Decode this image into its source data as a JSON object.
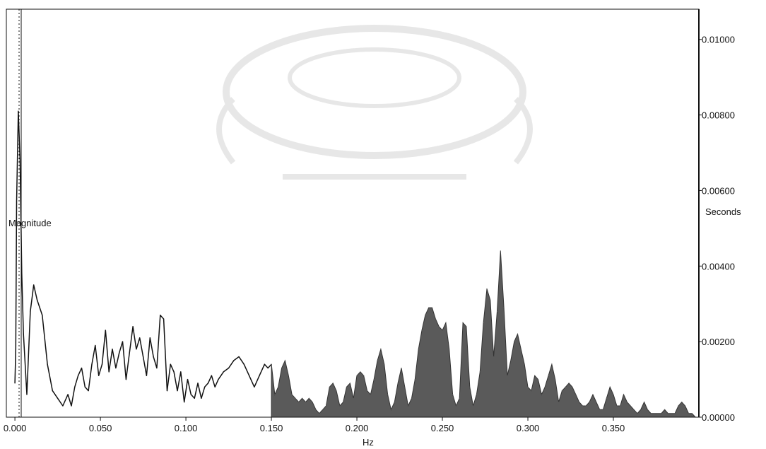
{
  "chart_data": {
    "type": "area",
    "xlabel": "Hz",
    "ylabel_left": "Magnitude",
    "ylabel_right": "Seconds",
    "xlim": [
      -0.005,
      0.4
    ],
    "ylim": [
      0,
      0.0108
    ],
    "x_ticks": [
      "0.000",
      "0.050",
      "0.100",
      "0.150",
      "0.200",
      "0.250",
      "0.300",
      "0.350"
    ],
    "x_tick_values": [
      0.0,
      0.05,
      0.1,
      0.15,
      0.2,
      0.25,
      0.3,
      0.35
    ],
    "y_ticks": [
      "0.00000",
      "0.00200",
      "0.00400",
      "0.00600",
      "0.00800",
      "0.01000"
    ],
    "y_tick_values": [
      0.0,
      0.002,
      0.004,
      0.006,
      0.008,
      0.01
    ],
    "low_band_limit": 0.15,
    "series": [
      {
        "style": "line",
        "color": "#111111",
        "x": [
          0.0,
          0.0005,
          0.001,
          0.002,
          0.003,
          0.004,
          0.005,
          0.007,
          0.009,
          0.011,
          0.013,
          0.016,
          0.019,
          0.022,
          0.025,
          0.028,
          0.031,
          0.033,
          0.035,
          0.037,
          0.039,
          0.041,
          0.043,
          0.045,
          0.047,
          0.049,
          0.051,
          0.053,
          0.055,
          0.057,
          0.059,
          0.061,
          0.063,
          0.065,
          0.067,
          0.069,
          0.071,
          0.073,
          0.075,
          0.077,
          0.079,
          0.081,
          0.083,
          0.085,
          0.087,
          0.089,
          0.091,
          0.093,
          0.095,
          0.097,
          0.099,
          0.101,
          0.103,
          0.105,
          0.107,
          0.109,
          0.111,
          0.113,
          0.115,
          0.117,
          0.119,
          0.122,
          0.125,
          0.128,
          0.131,
          0.134,
          0.137,
          0.14,
          0.143,
          0.146,
          0.148,
          0.15
        ],
        "values": [
          0.0009,
          0.0018,
          0.0057,
          0.0081,
          0.0068,
          0.0038,
          0.0022,
          0.0006,
          0.0028,
          0.0035,
          0.0031,
          0.0027,
          0.0014,
          0.0007,
          0.0005,
          0.0003,
          0.0006,
          0.0003,
          0.0008,
          0.0011,
          0.0013,
          0.0008,
          0.0007,
          0.0014,
          0.0019,
          0.0011,
          0.0014,
          0.0023,
          0.0012,
          0.0018,
          0.0013,
          0.0017,
          0.002,
          0.001,
          0.0017,
          0.0024,
          0.0018,
          0.0021,
          0.0016,
          0.0011,
          0.0021,
          0.0016,
          0.0013,
          0.0027,
          0.0026,
          0.0007,
          0.0014,
          0.0012,
          0.0007,
          0.0012,
          0.0004,
          0.001,
          0.0006,
          0.0005,
          0.0009,
          0.0005,
          0.0008,
          0.0009,
          0.0011,
          0.0008,
          0.001,
          0.0012,
          0.0013,
          0.0015,
          0.0016,
          0.0014,
          0.0011,
          0.0008,
          0.0011,
          0.0014,
          0.0013,
          0.0014
        ]
      },
      {
        "style": "area",
        "color": "#5a5a5a",
        "x": [
          0.15,
          0.152,
          0.154,
          0.156,
          0.158,
          0.16,
          0.162,
          0.164,
          0.166,
          0.168,
          0.17,
          0.172,
          0.174,
          0.176,
          0.178,
          0.18,
          0.182,
          0.184,
          0.186,
          0.188,
          0.19,
          0.192,
          0.194,
          0.196,
          0.198,
          0.2,
          0.202,
          0.204,
          0.206,
          0.208,
          0.21,
          0.212,
          0.214,
          0.216,
          0.218,
          0.22,
          0.222,
          0.224,
          0.226,
          0.228,
          0.23,
          0.232,
          0.234,
          0.236,
          0.238,
          0.24,
          0.242,
          0.244,
          0.246,
          0.248,
          0.25,
          0.252,
          0.254,
          0.256,
          0.258,
          0.26,
          0.262,
          0.264,
          0.266,
          0.268,
          0.27,
          0.272,
          0.274,
          0.276,
          0.278,
          0.28,
          0.282,
          0.284,
          0.286,
          0.288,
          0.29,
          0.292,
          0.294,
          0.296,
          0.298,
          0.3,
          0.302,
          0.304,
          0.306,
          0.308,
          0.31,
          0.312,
          0.314,
          0.316,
          0.318,
          0.32,
          0.322,
          0.324,
          0.326,
          0.328,
          0.33,
          0.332,
          0.334,
          0.336,
          0.338,
          0.34,
          0.342,
          0.344,
          0.346,
          0.348,
          0.35,
          0.352,
          0.354,
          0.356,
          0.358,
          0.36,
          0.362,
          0.364,
          0.366,
          0.368,
          0.37,
          0.372,
          0.374,
          0.376,
          0.378,
          0.38,
          0.382,
          0.384,
          0.386,
          0.388,
          0.39,
          0.392,
          0.394,
          0.396,
          0.398
        ],
        "values": [
          0.0014,
          0.0006,
          0.0008,
          0.0013,
          0.0015,
          0.0011,
          0.0006,
          0.0005,
          0.0004,
          0.0005,
          0.0004,
          0.0005,
          0.0004,
          0.0002,
          0.0001,
          0.0002,
          0.0003,
          0.0008,
          0.0009,
          0.0007,
          0.0003,
          0.0004,
          0.0008,
          0.0009,
          0.0005,
          0.0011,
          0.0012,
          0.0011,
          0.0007,
          0.0006,
          0.001,
          0.0015,
          0.0018,
          0.0014,
          0.0006,
          0.0002,
          0.0004,
          0.0009,
          0.0013,
          0.0008,
          0.0003,
          0.0005,
          0.001,
          0.0018,
          0.0023,
          0.0027,
          0.0029,
          0.0029,
          0.0026,
          0.0024,
          0.0023,
          0.0025,
          0.0018,
          0.0006,
          0.0003,
          0.0005,
          0.0025,
          0.0024,
          0.0008,
          0.0003,
          0.0006,
          0.0012,
          0.0025,
          0.0034,
          0.0031,
          0.0016,
          0.0028,
          0.0044,
          0.0029,
          0.0011,
          0.0015,
          0.002,
          0.0022,
          0.0018,
          0.0014,
          0.0008,
          0.0007,
          0.0011,
          0.001,
          0.0006,
          0.0008,
          0.0011,
          0.0014,
          0.001,
          0.0004,
          0.0007,
          0.0008,
          0.0009,
          0.0008,
          0.0006,
          0.0004,
          0.0003,
          0.0003,
          0.0004,
          0.0006,
          0.0004,
          0.0002,
          0.0002,
          0.0005,
          0.0008,
          0.0006,
          0.0003,
          0.0003,
          0.0006,
          0.0004,
          0.0003,
          0.0002,
          0.0001,
          0.0002,
          0.0004,
          0.0002,
          0.0001,
          0.0001,
          0.0001,
          0.0001,
          0.0002,
          0.0001,
          0.0001,
          0.0001,
          0.0003,
          0.0004,
          0.0003,
          0.0001,
          0.0001,
          0.0
        ]
      }
    ],
    "grid": false,
    "legend": "none"
  },
  "colors": {
    "line": "#111111",
    "area_fill": "#5a5a5a",
    "axis": "#111111",
    "background": "#ffffff"
  }
}
